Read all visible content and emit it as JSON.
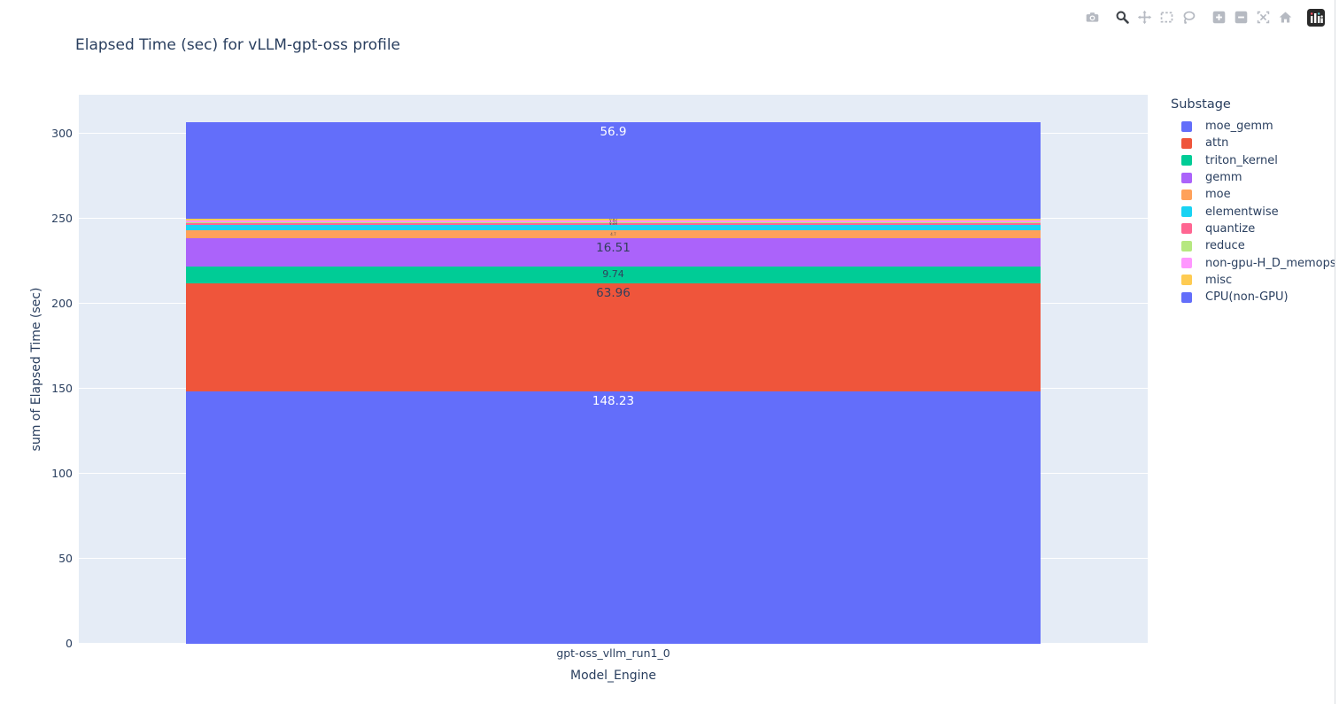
{
  "modebar": {
    "icons": [
      {
        "name": "camera",
        "group_start": false,
        "active": false
      },
      {
        "name": "zoom",
        "group_start": true,
        "active": true
      },
      {
        "name": "pan",
        "group_start": false,
        "active": false
      },
      {
        "name": "box-select",
        "group_start": false,
        "active": false
      },
      {
        "name": "lasso-select",
        "group_start": false,
        "active": false
      },
      {
        "name": "zoom-in",
        "group_start": true,
        "active": false
      },
      {
        "name": "zoom-out",
        "group_start": false,
        "active": false
      },
      {
        "name": "autoscale",
        "group_start": false,
        "active": false
      },
      {
        "name": "reset-home",
        "group_start": false,
        "active": false
      },
      {
        "name": "plotly-logo",
        "group_start": true,
        "active": false
      }
    ]
  },
  "chart_data": {
    "type": "bar",
    "barmode": "stack",
    "title": "Elapsed Time (sec) for vLLM-gpt-oss profile",
    "xlabel": "Model_Engine",
    "ylabel": "sum of Elapsed Time (sec)",
    "categories": [
      "gpt-oss_vllm_run1_0"
    ],
    "ylim": [
      0,
      323
    ],
    "yticks": [
      0,
      50,
      100,
      150,
      200,
      250,
      300
    ],
    "grid": true,
    "plot_bg": "#e5ecf6",
    "grid_color": "#ffffff",
    "text_color": "#2a3f5f",
    "legend_title": "Substage",
    "legend_position": "right",
    "series": [
      {
        "name": "moe_gemm",
        "color": "#636EFA",
        "value": 56.9,
        "label": "56.9",
        "label_style": "light"
      },
      {
        "name": "attn",
        "color": "#EF553B",
        "value": 63.96,
        "label": "63.96",
        "label_style": "dark"
      },
      {
        "name": "triton_kernel",
        "color": "#00CC96",
        "value": 9.74,
        "label": "9.74",
        "label_style": "dark-small"
      },
      {
        "name": "gemm",
        "color": "#AB63FA",
        "value": 16.51,
        "label": "16.51",
        "label_style": "dark"
      },
      {
        "name": "moe",
        "color": "#FFA15A",
        "value": 4.7,
        "label": "4.7",
        "label_style": "micro"
      },
      {
        "name": "elementwise",
        "color": "#19D3F3",
        "value": 3.13,
        "label": "",
        "label_style": "micro"
      },
      {
        "name": "quantize",
        "color": "#FF6692",
        "value": 1.04,
        "label": "1.04",
        "label_style": "micro"
      },
      {
        "name": "reduce",
        "color": "#B6E880",
        "value": 0.73,
        "label": "0.73",
        "label_style": "micro"
      },
      {
        "name": "non-gpu-H_D_memops",
        "color": "#FF97FF",
        "value": 1.04,
        "label": "1.04",
        "label_style": "micro"
      },
      {
        "name": "misc",
        "color": "#FECB52",
        "value": 0.85,
        "label": "0.85",
        "label_style": "micro"
      },
      {
        "name": "CPU(non-GPU)",
        "color": "#636EFA",
        "value": 148.23,
        "label": "148.23",
        "label_style": "light"
      }
    ],
    "stack_order_bottom_to_top": [
      "CPU(non-GPU)",
      "attn",
      "triton_kernel",
      "gemm",
      "moe",
      "elementwise",
      "quantize",
      "reduce",
      "non-gpu-H_D_memops",
      "misc",
      "moe_gemm"
    ]
  }
}
